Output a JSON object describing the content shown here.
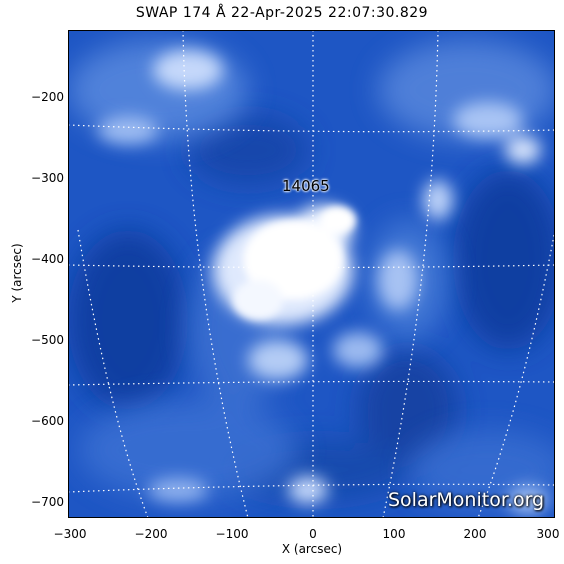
{
  "figure": {
    "title": "SWAP 174 Å 22-Apr-2025 22:07:30.829",
    "xlabel": "X (arcsec)",
    "ylabel": "Y (arcsec)",
    "x_ticks": [
      "−300",
      "−200",
      "−100",
      "0",
      "100",
      "200",
      "300"
    ],
    "y_ticks": [
      "−200",
      "−300",
      "−400",
      "−500",
      "−600",
      "−700"
    ],
    "region_label": "14065",
    "watermark": "SolarMonitor.org",
    "colors": {
      "image_base": "#1a4fbf",
      "image_highlight": "#ffffff",
      "grid": "#ffffff"
    }
  }
}
